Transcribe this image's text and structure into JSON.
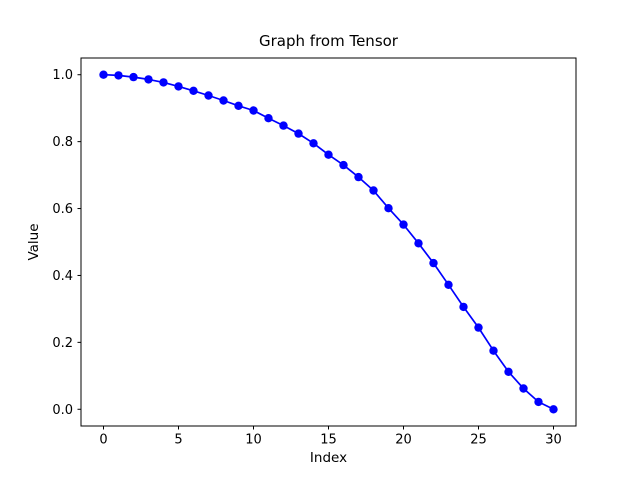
{
  "figure": {
    "background": "#ffffff",
    "spine_color": "#000000",
    "tick_color": "#000000",
    "text_color": "#000000"
  },
  "chart_data": {
    "type": "line",
    "title": "Graph from Tensor",
    "xlabel": "Index",
    "ylabel": "Value",
    "grid": false,
    "legend_position": "none",
    "line_color": "#0000ff",
    "marker": "o",
    "marker_color": "#0000ff",
    "xlim": [
      -1.5,
      31.5
    ],
    "ylim": [
      -0.05,
      1.05
    ],
    "x_tick_values": [
      0,
      5,
      10,
      15,
      20,
      25,
      30
    ],
    "x_tick_labels": [
      "0",
      "5",
      "10",
      "15",
      "20",
      "25",
      "30"
    ],
    "y_tick_values": [
      0.0,
      0.2,
      0.4,
      0.6,
      0.8,
      1.0
    ],
    "y_tick_labels": [
      "0.0",
      "0.2",
      "0.4",
      "0.6",
      "0.8",
      "1.0"
    ],
    "x": [
      0,
      1,
      2,
      3,
      4,
      5,
      6,
      7,
      8,
      9,
      10,
      11,
      12,
      13,
      14,
      15,
      16,
      17,
      18,
      19,
      20,
      21,
      22,
      23,
      24,
      25,
      26,
      27,
      28,
      29,
      30
    ],
    "values": [
      1.0,
      0.998,
      0.993,
      0.986,
      0.977,
      0.965,
      0.952,
      0.938,
      0.923,
      0.907,
      0.893,
      0.87,
      0.848,
      0.824,
      0.795,
      0.761,
      0.73,
      0.694,
      0.654,
      0.601,
      0.552,
      0.496,
      0.437,
      0.372,
      0.306,
      0.244,
      0.175,
      0.112,
      0.062,
      0.022,
      0.0
    ]
  }
}
